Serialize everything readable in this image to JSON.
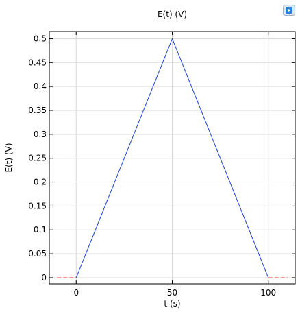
{
  "chart_data": {
    "type": "line",
    "title": "E(t) (V)",
    "xlabel": "t (s)",
    "ylabel": "E(t) (V)",
    "xlim": [
      -14,
      114
    ],
    "ylim": [
      -0.013,
      0.515
    ],
    "xticks": [
      0,
      50,
      100
    ],
    "yticks": [
      0,
      0.05,
      0.1,
      0.15,
      0.2,
      0.25,
      0.3,
      0.35,
      0.4,
      0.45,
      0.5
    ],
    "grid": true,
    "series": [
      {
        "color": "#1a3fd6",
        "style": "solid",
        "x": [
          0,
          50,
          100
        ],
        "y": [
          0,
          0.5,
          0
        ]
      },
      {
        "color": "#e8262a",
        "style": "dashed",
        "x": [
          -10,
          0
        ],
        "y": [
          0,
          0
        ]
      },
      {
        "color": "#e8262a",
        "style": "dashed",
        "x": [
          100,
          110
        ],
        "y": [
          0,
          0
        ]
      }
    ]
  },
  "toolbar": {
    "export_icon": "image-export-icon",
    "accent_color": "#2a7fd4"
  }
}
